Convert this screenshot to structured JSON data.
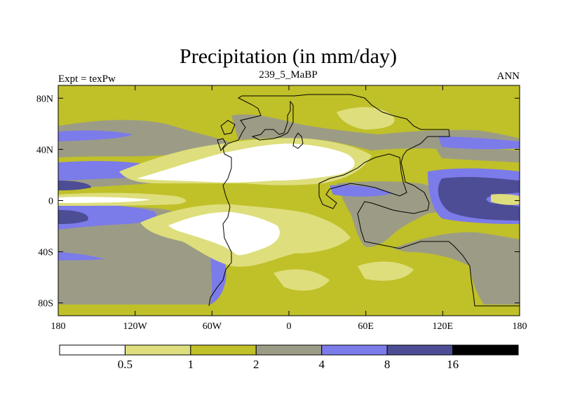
{
  "chart_data": {
    "type": "heatmap",
    "title": "Precipitation (in mm/day)",
    "left_label": "Expt = texPw",
    "center_label": "239_5_MaBP",
    "right_label": "ANN",
    "x_ticks": [
      "180",
      "120W",
      "60W",
      "0",
      "60E",
      "120E",
      "180"
    ],
    "x_tick_values": [
      -180,
      -120,
      -60,
      0,
      60,
      120,
      180
    ],
    "y_ticks": [
      "80N",
      "40N",
      "0",
      "40S",
      "80S"
    ],
    "y_tick_values": [
      80,
      40,
      0,
      -40,
      -80
    ],
    "xlim": [
      -180,
      180
    ],
    "ylim": [
      -90,
      90
    ],
    "colorbar": {
      "levels": [
        "0.5",
        "1",
        "2",
        "4",
        "8",
        "16"
      ],
      "level_values": [
        0.5,
        1,
        2,
        4,
        8,
        16
      ],
      "colors": [
        "#ffffff",
        "#dede7c",
        "#c0c029",
        "#9c9c86",
        "#7b7bea",
        "#4d4d96",
        "#000000"
      ]
    }
  }
}
